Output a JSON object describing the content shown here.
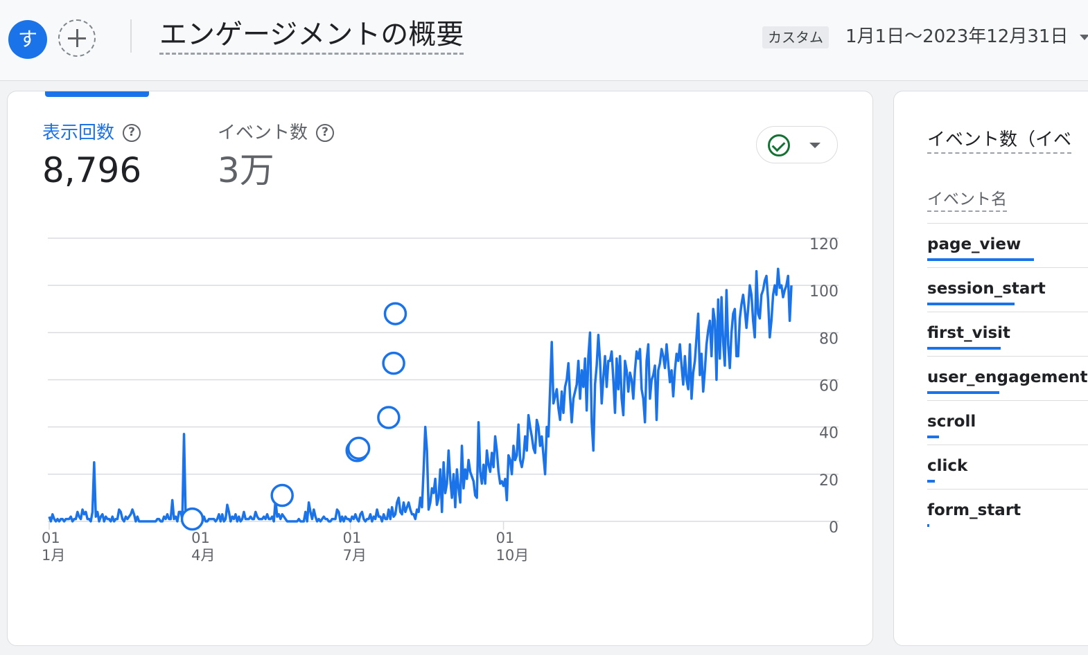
{
  "header": {
    "avatar_initial": "す",
    "title": "エンゲージメントの概要",
    "date_preset": "カスタム",
    "date_range": "1月1日〜2023年12月31日"
  },
  "metrics": [
    {
      "label": "表示回数",
      "value": "8,796",
      "help": "?"
    },
    {
      "label": "イベント数",
      "value": "3万",
      "help": "?"
    }
  ],
  "side_card": {
    "title": "イベント数（イベ",
    "column_header": "イベント名",
    "events": [
      {
        "name": "page_view",
        "share": 0.55
      },
      {
        "name": "session_start",
        "share": 0.45
      },
      {
        "name": "first_visit",
        "share": 0.38
      },
      {
        "name": "user_engagement",
        "share": 0.37
      },
      {
        "name": "scroll",
        "share": 0.06
      },
      {
        "name": "click",
        "share": 0.04
      },
      {
        "name": "form_start",
        "share": 0.01
      }
    ]
  },
  "colors": {
    "accent": "#1a73e8",
    "check": "#137333"
  },
  "chart_data": {
    "type": "line",
    "ylim": [
      0,
      120
    ],
    "y_ticks": [
      0,
      20,
      40,
      60,
      80,
      100,
      120
    ],
    "x_ticks": [
      {
        "day": 1,
        "top": "01",
        "bottom": "1月"
      },
      {
        "day": 91,
        "top": "01",
        "bottom": "4月"
      },
      {
        "day": 182,
        "top": "01",
        "bottom": "7月"
      },
      {
        "day": 274,
        "top": "01",
        "bottom": "10月"
      }
    ],
    "series": [
      {
        "values": [
          2,
          0,
          3,
          1,
          0,
          1,
          0,
          1,
          1,
          0,
          1,
          1,
          1,
          2,
          0,
          1,
          1,
          4,
          2,
          1,
          5,
          3,
          4,
          1,
          1,
          0,
          4,
          25,
          2,
          4,
          0,
          2,
          3,
          0,
          2,
          1,
          1,
          0,
          2,
          0,
          1,
          1,
          5,
          4,
          1,
          0,
          2,
          1,
          2,
          3,
          5,
          3,
          0,
          2,
          0,
          0,
          0,
          0,
          0,
          0,
          0,
          0,
          0,
          0,
          0,
          1,
          1,
          0,
          0,
          2,
          1,
          3,
          1,
          1,
          9,
          1,
          2,
          0,
          4,
          4,
          1,
          37,
          2,
          1,
          2,
          3,
          0,
          1,
          2,
          0,
          0,
          2,
          0,
          2,
          0,
          0,
          1,
          1,
          1,
          1,
          0,
          1,
          3,
          0,
          3,
          0,
          1,
          7,
          4,
          0,
          2,
          1,
          3,
          0,
          2,
          0,
          1,
          4,
          1,
          1,
          1,
          2,
          1,
          1,
          4,
          2,
          1,
          1,
          1,
          2,
          1,
          3,
          1,
          1,
          2,
          0,
          9,
          2,
          3,
          1,
          3,
          2,
          1,
          0,
          0,
          0,
          0,
          0,
          0,
          0,
          1,
          0,
          0,
          0,
          4,
          0,
          8,
          4,
          1,
          5,
          2,
          0,
          1,
          0,
          1,
          2,
          1,
          1,
          0,
          0,
          1,
          1,
          1,
          5,
          4,
          0,
          2,
          0,
          2,
          1,
          1,
          0,
          2,
          1,
          3,
          1,
          0,
          3,
          4,
          1,
          0,
          1,
          1,
          3,
          0,
          2,
          1,
          5,
          2,
          2,
          0,
          3,
          1,
          1,
          5,
          1,
          6,
          2,
          3,
          8,
          10,
          4,
          3,
          8,
          4,
          6,
          8,
          5,
          3,
          3,
          1,
          5,
          4,
          10,
          6,
          22,
          40,
          30,
          5,
          8,
          14,
          12,
          18,
          7,
          10,
          22,
          4,
          25,
          12,
          16,
          30,
          18,
          10,
          20,
          6,
          22,
          14,
          8,
          32,
          14,
          22,
          18,
          26,
          21,
          19,
          17,
          11,
          10,
          42,
          21,
          16,
          24,
          16,
          30,
          24,
          21,
          29,
          23,
          36,
          30,
          21,
          16,
          17,
          15,
          18,
          9,
          28,
          26,
          20,
          32,
          26,
          28,
          41,
          26,
          23,
          27,
          36,
          30,
          45,
          40,
          36,
          31,
          29,
          43,
          40,
          32,
          36,
          28,
          20,
          40,
          36,
          56,
          76,
          50,
          53,
          56,
          48,
          43,
          55,
          46,
          57,
          60,
          67,
          53,
          42,
          52,
          55,
          58,
          68,
          52,
          64,
          57,
          69,
          47,
          70,
          80,
          42,
          30,
          58,
          66,
          79,
          68,
          50,
          61,
          70,
          57,
          68,
          68,
          72,
          60,
          46,
          69,
          56,
          70,
          52,
          45,
          68,
          64,
          55,
          63,
          60,
          52,
          64,
          72,
          69,
          73,
          56,
          52,
          42,
          68,
          75,
          52,
          60,
          62,
          66,
          43,
          64,
          67,
          73,
          70,
          65,
          75,
          67,
          59,
          64,
          53,
          64,
          71,
          68,
          75,
          66,
          58,
          70,
          60,
          56,
          75,
          52,
          63,
          68,
          78,
          88,
          62,
          71,
          55,
          64,
          75,
          81,
          85,
          70,
          90,
          85,
          60,
          94,
          69,
          95,
          76,
          66,
          98,
          75,
          65,
          80,
          88,
          90,
          70,
          70,
          86,
          92,
          96,
          90,
          82,
          90,
          100,
          96,
          85,
          78,
          106,
          88,
          86,
          96,
          98,
          102,
          104,
          94,
          78,
          85,
          96,
          100,
          96,
          107,
          99,
          100,
          95,
          98,
          100,
          104,
          85,
          100
        ]
      }
    ],
    "markers": [
      {
        "day": 87,
        "value": 1
      },
      {
        "day": 141,
        "value": 11
      },
      {
        "day": 186,
        "value": 30
      },
      {
        "day": 187,
        "value": 31
      },
      {
        "day": 205,
        "value": 44
      },
      {
        "day": 208,
        "value": 67
      },
      {
        "day": 209,
        "value": 88
      }
    ]
  }
}
